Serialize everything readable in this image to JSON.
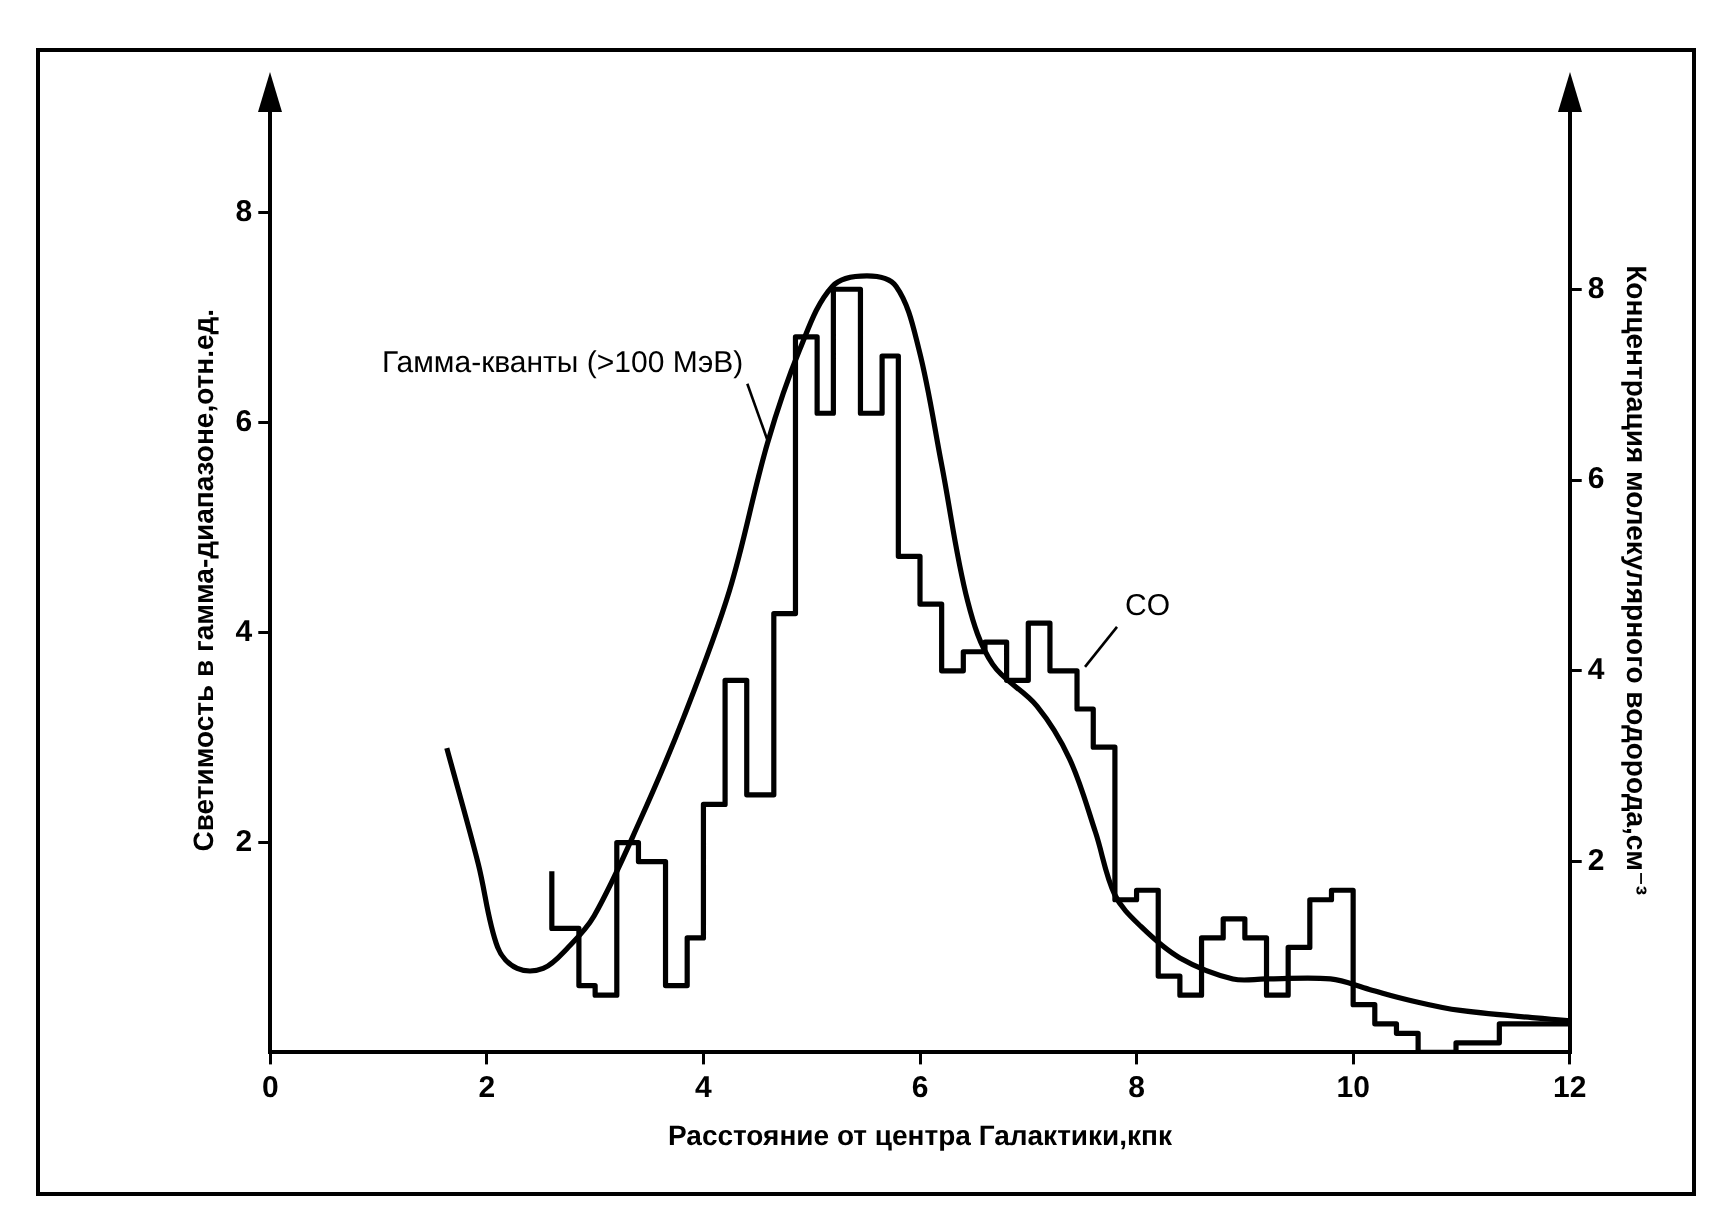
{
  "chart_data": {
    "type": "line",
    "xlabel": "Расстояние от центра Галактики,кпк",
    "ylabel": "Светимость в гамма-диапазоне,отн.ед.",
    "y2label": "Концентрация молекулярного водорода,см⁻³",
    "xlim": [
      0,
      12
    ],
    "xticks": [
      0,
      2,
      4,
      6,
      8,
      10,
      12
    ],
    "ylim": [
      0,
      9
    ],
    "yticks": [
      2,
      4,
      6,
      8
    ],
    "y2lim": [
      0,
      9.9
    ],
    "y2ticks": [
      2,
      4,
      6,
      8
    ],
    "series": [
      {
        "name": "Гамма-кванты (>100 МэВ)",
        "type": "line",
        "color": "#000000",
        "line_style": "solid",
        "x": [
          1.63,
          1.92,
          2.1,
          2.28,
          2.52,
          2.75,
          2.99,
          3.41,
          3.82,
          4.24,
          4.59,
          4.89,
          5.19,
          5.51,
          5.78,
          5.99,
          6.2,
          6.44,
          6.67,
          7.08,
          7.38,
          7.62,
          7.8,
          8.04,
          8.4,
          8.89,
          9.19,
          9.79,
          10.15,
          10.51,
          10.99,
          12
        ],
        "values": [
          2.9,
          1.8,
          1.0,
          0.8,
          0.8,
          1.0,
          1.3,
          2.2,
          3.2,
          4.4,
          5.8,
          6.7,
          7.3,
          7.4,
          7.3,
          6.7,
          5.6,
          4.3,
          3.7,
          3.3,
          2.8,
          2.1,
          1.5,
          1.2,
          0.9,
          0.7,
          0.7,
          0.7,
          0.6,
          0.5,
          0.4,
          0.3
        ]
      },
      {
        "name": "CO",
        "type": "step",
        "axis": "y2",
        "color": "#000000",
        "line_style": "solid",
        "x": [
          2.6,
          2.85,
          3.0,
          3.2,
          3.4,
          3.65,
          3.85,
          4.0,
          4.2,
          4.4,
          4.65,
          4.85,
          5.05,
          5.2,
          5.45,
          5.65,
          5.8,
          6.0,
          6.2,
          6.4,
          6.6,
          6.8,
          7.0,
          7.2,
          7.45,
          7.6,
          7.8,
          8.0,
          8.2,
          8.4,
          8.6,
          8.8,
          9.0,
          9.2,
          9.4,
          9.6,
          9.8,
          10.0,
          10.2,
          10.4,
          10.6,
          10.95,
          11.35,
          11.7,
          12
        ],
        "values": [
          1.9,
          1.3,
          0.7,
          0.6,
          2.2,
          2.0,
          0.7,
          1.2,
          2.6,
          3.9,
          2.7,
          4.6,
          7.5,
          6.7,
          8.0,
          6.7,
          7.3,
          5.2,
          4.7,
          4.0,
          4.2,
          4.3,
          3.9,
          4.5,
          4.0,
          3.6,
          3.2,
          1.6,
          1.7,
          0.8,
          0.6,
          1.2,
          1.4,
          1.2,
          0.6,
          1.1,
          1.6,
          1.7,
          0.5,
          0.3,
          0.2,
          0.0,
          0.1,
          0.3,
          0.3
        ]
      }
    ]
  }
}
